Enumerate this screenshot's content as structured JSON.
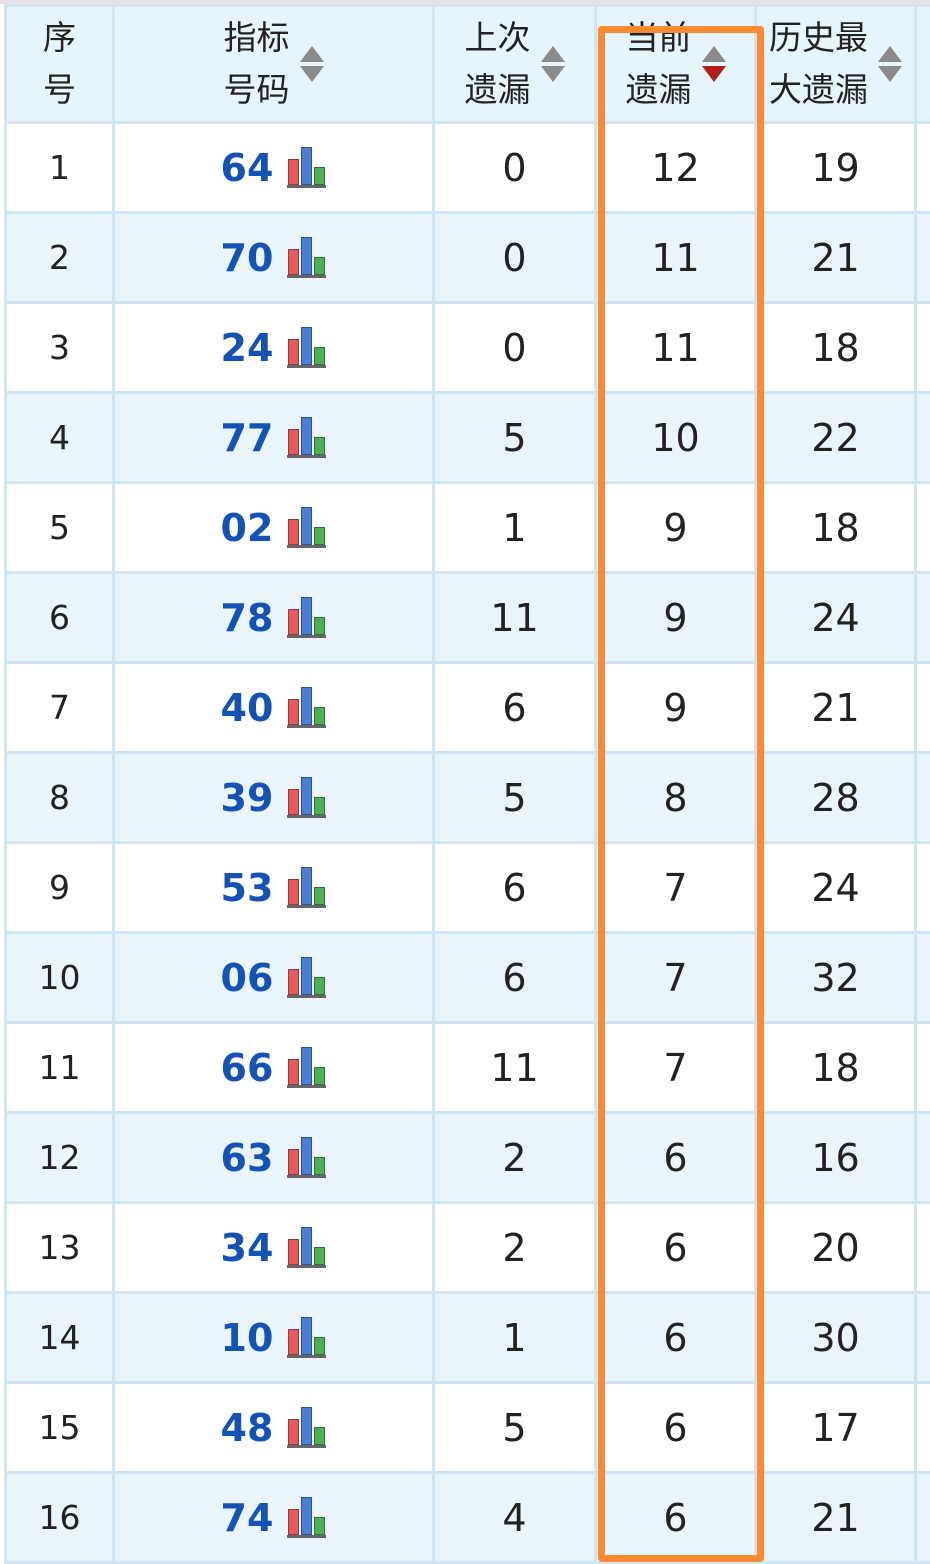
{
  "header": {
    "col_index": [
      "序",
      "号"
    ],
    "col_number": [
      "指标",
      "号码"
    ],
    "col_last_miss": [
      "上次",
      "遗漏"
    ],
    "col_current_miss": [
      "当前",
      "遗漏"
    ],
    "col_max_miss": [
      "历史最",
      "大遗漏"
    ]
  },
  "sort": {
    "active_column": "col_current_miss",
    "direction": "desc"
  },
  "colors": {
    "number_text": "#1452b5",
    "highlight_border": "#ff8a33",
    "row_alt": "#e9f5fb",
    "header_bg": "#e6f4fb",
    "sort_active": "#b01e1e"
  },
  "icons": {
    "chart": "bar-chart-icon",
    "sort": "sort-arrows-icon"
  },
  "rows": [
    {
      "index": "1",
      "number": "64",
      "last_miss": "0",
      "current_miss": "12",
      "max_miss": "19"
    },
    {
      "index": "2",
      "number": "70",
      "last_miss": "0",
      "current_miss": "11",
      "max_miss": "21"
    },
    {
      "index": "3",
      "number": "24",
      "last_miss": "0",
      "current_miss": "11",
      "max_miss": "18"
    },
    {
      "index": "4",
      "number": "77",
      "last_miss": "5",
      "current_miss": "10",
      "max_miss": "22"
    },
    {
      "index": "5",
      "number": "02",
      "last_miss": "1",
      "current_miss": "9",
      "max_miss": "18"
    },
    {
      "index": "6",
      "number": "78",
      "last_miss": "11",
      "current_miss": "9",
      "max_miss": "24"
    },
    {
      "index": "7",
      "number": "40",
      "last_miss": "6",
      "current_miss": "9",
      "max_miss": "21"
    },
    {
      "index": "8",
      "number": "39",
      "last_miss": "5",
      "current_miss": "8",
      "max_miss": "28"
    },
    {
      "index": "9",
      "number": "53",
      "last_miss": "6",
      "current_miss": "7",
      "max_miss": "24"
    },
    {
      "index": "10",
      "number": "06",
      "last_miss": "6",
      "current_miss": "7",
      "max_miss": "32"
    },
    {
      "index": "11",
      "number": "66",
      "last_miss": "11",
      "current_miss": "7",
      "max_miss": "18"
    },
    {
      "index": "12",
      "number": "63",
      "last_miss": "2",
      "current_miss": "6",
      "max_miss": "16"
    },
    {
      "index": "13",
      "number": "34",
      "last_miss": "2",
      "current_miss": "6",
      "max_miss": "20"
    },
    {
      "index": "14",
      "number": "10",
      "last_miss": "1",
      "current_miss": "6",
      "max_miss": "30"
    },
    {
      "index": "15",
      "number": "48",
      "last_miss": "5",
      "current_miss": "6",
      "max_miss": "17"
    },
    {
      "index": "16",
      "number": "74",
      "last_miss": "4",
      "current_miss": "6",
      "max_miss": "21"
    }
  ]
}
